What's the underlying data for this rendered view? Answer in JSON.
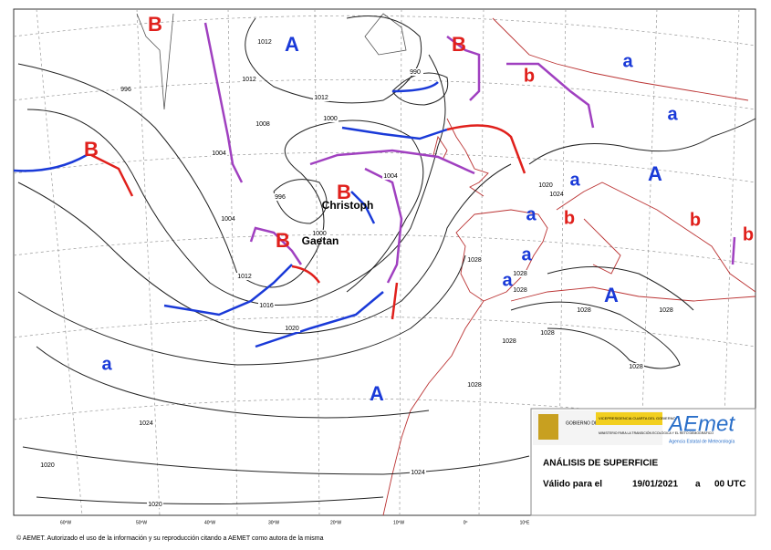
{
  "map": {
    "pressure_centers": [
      {
        "label": "B",
        "kind": "low"
      },
      {
        "label": "A",
        "kind": "high"
      },
      {
        "label": "B",
        "kind": "low"
      },
      {
        "label": "a",
        "kind": "high"
      },
      {
        "label": "b",
        "kind": "low"
      },
      {
        "label": "a",
        "kind": "high"
      },
      {
        "label": "B",
        "kind": "low"
      },
      {
        "label": "A",
        "kind": "high"
      },
      {
        "label": "B",
        "kind": "low"
      },
      {
        "label": "a",
        "kind": "high"
      },
      {
        "label": "a",
        "kind": "high"
      },
      {
        "label": "b",
        "kind": "low"
      },
      {
        "label": "b",
        "kind": "low"
      },
      {
        "label": "b",
        "kind": "low"
      },
      {
        "label": "B",
        "kind": "low"
      },
      {
        "label": "a",
        "kind": "high"
      },
      {
        "label": "a",
        "kind": "high"
      },
      {
        "label": "A",
        "kind": "high"
      },
      {
        "label": "a",
        "kind": "high"
      },
      {
        "label": "A",
        "kind": "high"
      }
    ],
    "storm_names": [
      "Christoph",
      "Gaetan"
    ],
    "isobar_labels": [
      "1012",
      "996",
      "1012",
      "1012",
      "990",
      "1000",
      "1008",
      "1004",
      "1004",
      "996",
      "1004",
      "1000",
      "1012",
      "1016",
      "1020",
      "1024",
      "1020",
      "1020",
      "1024",
      "1028",
      "1028",
      "1028",
      "1028",
      "1028",
      "1028",
      "1028",
      "1028",
      "1028",
      "1024",
      "1020"
    ],
    "longitude_labels": [
      "60ºW",
      "50ºW",
      "40ºW",
      "30ºW",
      "20ºW",
      "10ºW",
      "0º",
      "10ºE"
    ]
  },
  "legend": {
    "gov_name": "GOBIERNO DE ESPAÑA",
    "vice": "VICEPRESIDENCIA CUARTA DEL GOBIERNO",
    "ministry": "MINISTERIO PARA LA TRANSICIÓN ECOLÓGICA Y EL RETO DEMOGRÁFICO",
    "brand": "AEmet",
    "agency": "Agencia Estatal de Meteorología",
    "title": "ANÁLISIS DE SUPERFICIE",
    "valid_label": "Válido para el",
    "date": "19/01/2021",
    "separator": "a",
    "time": "00 UTC"
  },
  "copyright": "© AEMET. Autorizado el uso de la información y su reproducción citando a AEMET como autora de la misma"
}
